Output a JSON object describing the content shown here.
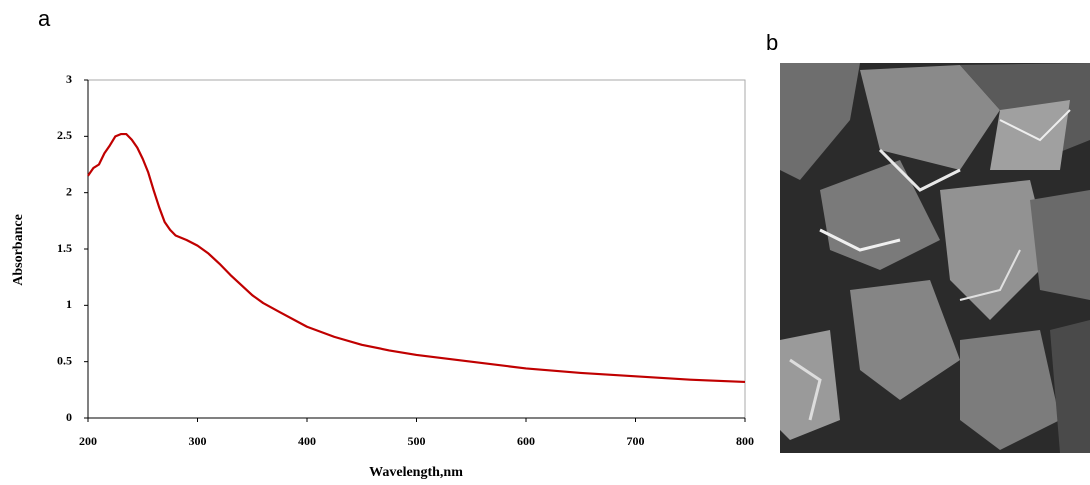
{
  "panel_labels": [
    "a",
    "b"
  ],
  "chart_data": {
    "type": "line",
    "x_label": "Wavelength,nm",
    "y_label": "Absorbance",
    "x": [
      200,
      205,
      210,
      215,
      220,
      225,
      230,
      235,
      240,
      245,
      250,
      255,
      260,
      265,
      270,
      275,
      280,
      290,
      300,
      310,
      320,
      330,
      340,
      350,
      360,
      375,
      400,
      425,
      450,
      475,
      500,
      550,
      600,
      650,
      700,
      750,
      800
    ],
    "series": [
      {
        "color": "#c00000",
        "values": [
          2.15,
          2.22,
          2.25,
          2.35,
          2.42,
          2.5,
          2.52,
          2.52,
          2.47,
          2.4,
          2.3,
          2.18,
          2.02,
          1.87,
          1.74,
          1.67,
          1.62,
          1.58,
          1.53,
          1.46,
          1.37,
          1.27,
          1.18,
          1.09,
          1.02,
          0.94,
          0.81,
          0.72,
          0.65,
          0.6,
          0.56,
          0.5,
          0.44,
          0.4,
          0.37,
          0.34,
          0.32
        ]
      }
    ],
    "xlim": [
      200,
      800
    ],
    "xticks": [
      200,
      300,
      400,
      500,
      600,
      700,
      800
    ],
    "ylim": [
      0,
      3
    ],
    "yticks": [
      0,
      0.5,
      1,
      1.5,
      2,
      2.5,
      3
    ],
    "grid": false
  }
}
